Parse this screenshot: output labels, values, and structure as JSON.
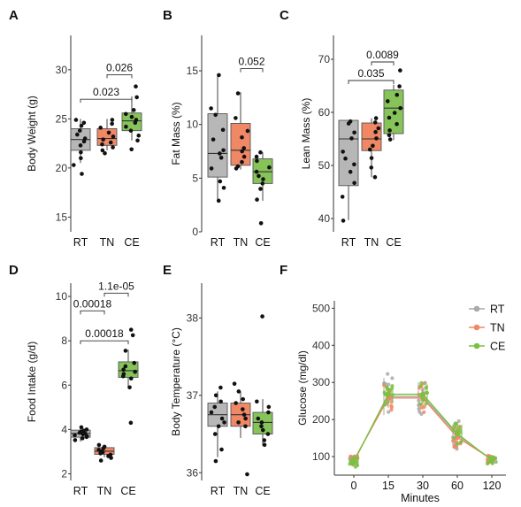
{
  "colors": {
    "RT": "#b7b7b7",
    "TN": "#f08866",
    "CE": "#86c45a",
    "RT_line": "#a9a9a9",
    "TN_line": "#f08866",
    "CE_line": "#7ac143"
  },
  "chart_data": [
    {
      "panel": "A",
      "type": "box",
      "ylabel": "Body Weight (g)",
      "groups": [
        "RT",
        "TN",
        "CE"
      ],
      "yticks": [
        15,
        20,
        25,
        30
      ],
      "ylim": [
        13.5,
        33.5
      ],
      "boxes": [
        {
          "group": "RT",
          "q1": 21.8,
          "median": 22.9,
          "q3": 24.0,
          "min": 20.5,
          "max": 25.0
        },
        {
          "group": "TN",
          "q1": 22.3,
          "median": 23.0,
          "q3": 24.0,
          "min": 21.8,
          "max": 25.0
        },
        {
          "group": "CE",
          "q1": 23.8,
          "median": 24.8,
          "q3": 25.6,
          "min": 22.8,
          "max": 27.3
        }
      ],
      "points": [
        {
          "group": "RT",
          "values": [
            24.9,
            24.6,
            24.3,
            23.8,
            23.4,
            23.0,
            22.7,
            22.3,
            21.6,
            21.0,
            20.3,
            19.4
          ]
        },
        {
          "group": "TN",
          "values": [
            24.9,
            24.5,
            24.1,
            23.6,
            23.2,
            22.9,
            22.6,
            22.4,
            22.1,
            21.8,
            21.5
          ]
        },
        {
          "group": "CE",
          "values": [
            28.3,
            27.2,
            25.9,
            25.5,
            25.2,
            24.9,
            24.6,
            24.2,
            23.8,
            23.3,
            22.8,
            21.9
          ]
        }
      ],
      "comparisons": [
        {
          "label": "0.023",
          "from": "RT",
          "to": "CE",
          "y": 27.0
        },
        {
          "label": "0.026",
          "from": "TN",
          "to": "CE",
          "y": 29.5
        }
      ]
    },
    {
      "panel": "B",
      "type": "box",
      "ylabel": "Fat Mass (%)",
      "groups": [
        "RT",
        "TN",
        "CE"
      ],
      "yticks": [
        0,
        5,
        10,
        15
      ],
      "ylim": [
        0,
        18.3
      ],
      "boxes": [
        {
          "group": "RT",
          "q1": 5.1,
          "median": 7.3,
          "q3": 11.0,
          "min": 3.0,
          "max": 14.7
        },
        {
          "group": "TN",
          "q1": 6.2,
          "median": 7.6,
          "q3": 10.1,
          "min": 5.8,
          "max": 13.0
        },
        {
          "group": "CE",
          "q1": 4.5,
          "median": 5.6,
          "q3": 6.8,
          "min": 2.9,
          "max": 7.4
        }
      ],
      "points": [
        {
          "group": "RT",
          "values": [
            14.6,
            11.5,
            10.9,
            9.5,
            8.6,
            7.6,
            7.3,
            6.9,
            5.9,
            4.7,
            4.1,
            2.9
          ]
        },
        {
          "group": "TN",
          "values": [
            12.9,
            10.6,
            9.4,
            8.8,
            7.8,
            7.5,
            7.0,
            6.5,
            6.1,
            5.9
          ]
        },
        {
          "group": "CE",
          "values": [
            7.4,
            7.0,
            6.6,
            6.0,
            5.6,
            5.2,
            4.9,
            4.5,
            4.0,
            3.0,
            0.8
          ]
        }
      ],
      "comparisons": [
        {
          "label": "0.052",
          "from": "TN",
          "to": "CE",
          "y": 15.2
        }
      ]
    },
    {
      "panel": "C",
      "type": "box",
      "ylabel": "Lean Mass (%)",
      "groups": [
        "RT",
        "TN",
        "CE"
      ],
      "yticks": [
        40,
        50,
        60,
        70
      ],
      "ylim": [
        37.5,
        74.5
      ],
      "boxes": [
        {
          "group": "RT",
          "q1": 46.2,
          "median": 55.0,
          "q3": 58.5,
          "min": 39.7,
          "max": 58.5
        },
        {
          "group": "TN",
          "q1": 52.8,
          "median": 55.0,
          "q3": 58.0,
          "min": 47.8,
          "max": 58.9
        },
        {
          "group": "CE",
          "q1": 56.0,
          "median": 60.8,
          "q3": 64.2,
          "min": 54.8,
          "max": 65.2
        }
      ],
      "points": [
        {
          "group": "RT",
          "values": [
            58.3,
            57.9,
            56.2,
            55.1,
            52.6,
            51.3,
            50.2,
            48.8,
            46.7,
            44.1,
            39.6
          ]
        },
        {
          "group": "TN",
          "values": [
            58.9,
            58.1,
            57.0,
            56.3,
            55.1,
            53.7,
            53.0,
            51.4,
            49.6,
            47.8
          ]
        },
        {
          "group": "CE",
          "values": [
            67.9,
            64.9,
            63.3,
            62.1,
            60.8,
            59.9,
            59.0,
            57.8,
            56.6,
            55.7,
            54.9
          ]
        }
      ],
      "comparisons": [
        {
          "label": "0.035",
          "from": "RT",
          "to": "CE",
          "y": 66.0
        },
        {
          "label": "0.0089",
          "from": "TN",
          "to": "CE",
          "y": 69.5
        }
      ]
    },
    {
      "panel": "D",
      "type": "box",
      "ylabel": "Food Intake (g/d)",
      "groups": [
        "RT",
        "TN",
        "CE"
      ],
      "yticks": [
        2,
        4,
        6,
        8,
        10
      ],
      "ylim": [
        1.7,
        10.6
      ],
      "boxes": [
        {
          "group": "RT",
          "q1": 3.65,
          "median": 3.82,
          "q3": 3.97,
          "min": 3.45,
          "max": 4.1
        },
        {
          "group": "TN",
          "q1": 2.88,
          "median": 3.02,
          "q3": 3.18,
          "min": 2.75,
          "max": 3.3
        },
        {
          "group": "CE",
          "q1": 6.35,
          "median": 6.65,
          "q3": 7.05,
          "min": 5.9,
          "max": 7.6
        }
      ],
      "points": [
        {
          "group": "RT",
          "values": [
            4.1,
            4.0,
            3.95,
            3.9,
            3.85,
            3.82,
            3.78,
            3.74,
            3.7,
            3.66,
            3.6,
            3.52
          ]
        },
        {
          "group": "TN",
          "values": [
            3.3,
            3.22,
            3.15,
            3.08,
            3.02,
            2.97,
            2.92,
            2.86,
            2.8,
            2.72,
            2.6
          ]
        },
        {
          "group": "CE",
          "values": [
            8.5,
            8.25,
            7.55,
            7.0,
            6.85,
            6.7,
            6.6,
            6.5,
            6.4,
            6.3,
            5.9,
            4.3
          ]
        }
      ],
      "comparisons": [
        {
          "label": "0.00018",
          "from": "RT",
          "to": "CE",
          "y": 8.0
        },
        {
          "label": "0.00018",
          "from": "RT",
          "to": "TN",
          "y": 9.35
        },
        {
          "label": "1.1e-05",
          "from": "TN",
          "to": "CE",
          "y": 10.15
        }
      ]
    },
    {
      "panel": "E",
      "type": "box",
      "ylabel": "Body Temperature (°C)",
      "groups": [
        "RT",
        "TN",
        "CE"
      ],
      "yticks": [
        36,
        37,
        38
      ],
      "ylim": [
        35.9,
        38.45
      ],
      "boxes": [
        {
          "group": "RT",
          "q1": 36.6,
          "median": 36.75,
          "q3": 36.9,
          "min": 36.2,
          "max": 37.05
        },
        {
          "group": "TN",
          "q1": 36.6,
          "median": 36.75,
          "q3": 36.9,
          "min": 36.45,
          "max": 37.05
        },
        {
          "group": "CE",
          "q1": 36.5,
          "median": 36.65,
          "q3": 36.78,
          "min": 36.35,
          "max": 36.95
        }
      ],
      "points": [
        {
          "group": "RT",
          "values": [
            37.1,
            37.0,
            36.92,
            36.85,
            36.78,
            36.7,
            36.65,
            36.6,
            36.5,
            36.3,
            36.15
          ]
        },
        {
          "group": "TN",
          "values": [
            37.15,
            37.05,
            36.95,
            36.9,
            36.82,
            36.75,
            36.7,
            36.65,
            36.6,
            35.98
          ]
        },
        {
          "group": "CE",
          "values": [
            38.02,
            36.92,
            36.85,
            36.78,
            36.7,
            36.65,
            36.6,
            36.55,
            36.5,
            36.42,
            36.36
          ]
        }
      ],
      "comparisons": []
    },
    {
      "panel": "F",
      "type": "line",
      "ylabel": "Glucose (mg/dl)",
      "xlabel": "Minutes",
      "x": [
        0,
        15,
        30,
        60,
        120
      ],
      "xticks": [
        "0",
        "15",
        "30",
        "60",
        "120"
      ],
      "yticks": [
        100,
        200,
        300,
        400,
        500
      ],
      "ylim": [
        50,
        520
      ],
      "legend": [
        "RT",
        "TN",
        "CE"
      ],
      "legend_position": "top-right",
      "series": [
        {
          "name": "RT",
          "values": [
            88,
            262,
            262,
            158,
            92
          ],
          "spread": [
            30,
            130,
            100,
            75,
            20
          ]
        },
        {
          "name": "TN",
          "values": [
            90,
            258,
            258,
            152,
            93
          ],
          "spread": [
            30,
            70,
            80,
            60,
            20
          ]
        },
        {
          "name": "CE",
          "values": [
            86,
            268,
            268,
            162,
            90
          ],
          "spread": [
            30,
            60,
            70,
            60,
            20
          ]
        }
      ]
    }
  ]
}
